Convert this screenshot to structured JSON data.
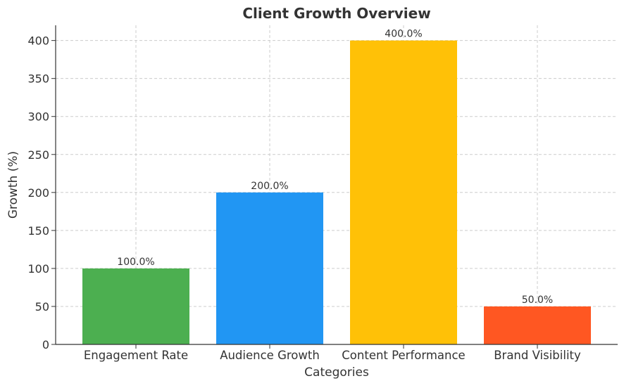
{
  "chart_data": {
    "type": "bar",
    "title": "Client Growth Overview",
    "xlabel": "Categories",
    "ylabel": "Growth (%)",
    "categories": [
      "Engagement Rate",
      "Audience Growth",
      "Content Performance",
      "Brand Visibility"
    ],
    "values": [
      100,
      200,
      400,
      50
    ],
    "value_labels": [
      "100.0%",
      "200.0%",
      "400.0%",
      "50.0%"
    ],
    "colors": [
      "#4caf50",
      "#2196f3",
      "#ffc107",
      "#ff5722"
    ],
    "ylim": [
      0,
      420
    ],
    "yticks": [
      0,
      50,
      100,
      150,
      200,
      250,
      300,
      350,
      400
    ],
    "grid": true,
    "legend": "none"
  }
}
